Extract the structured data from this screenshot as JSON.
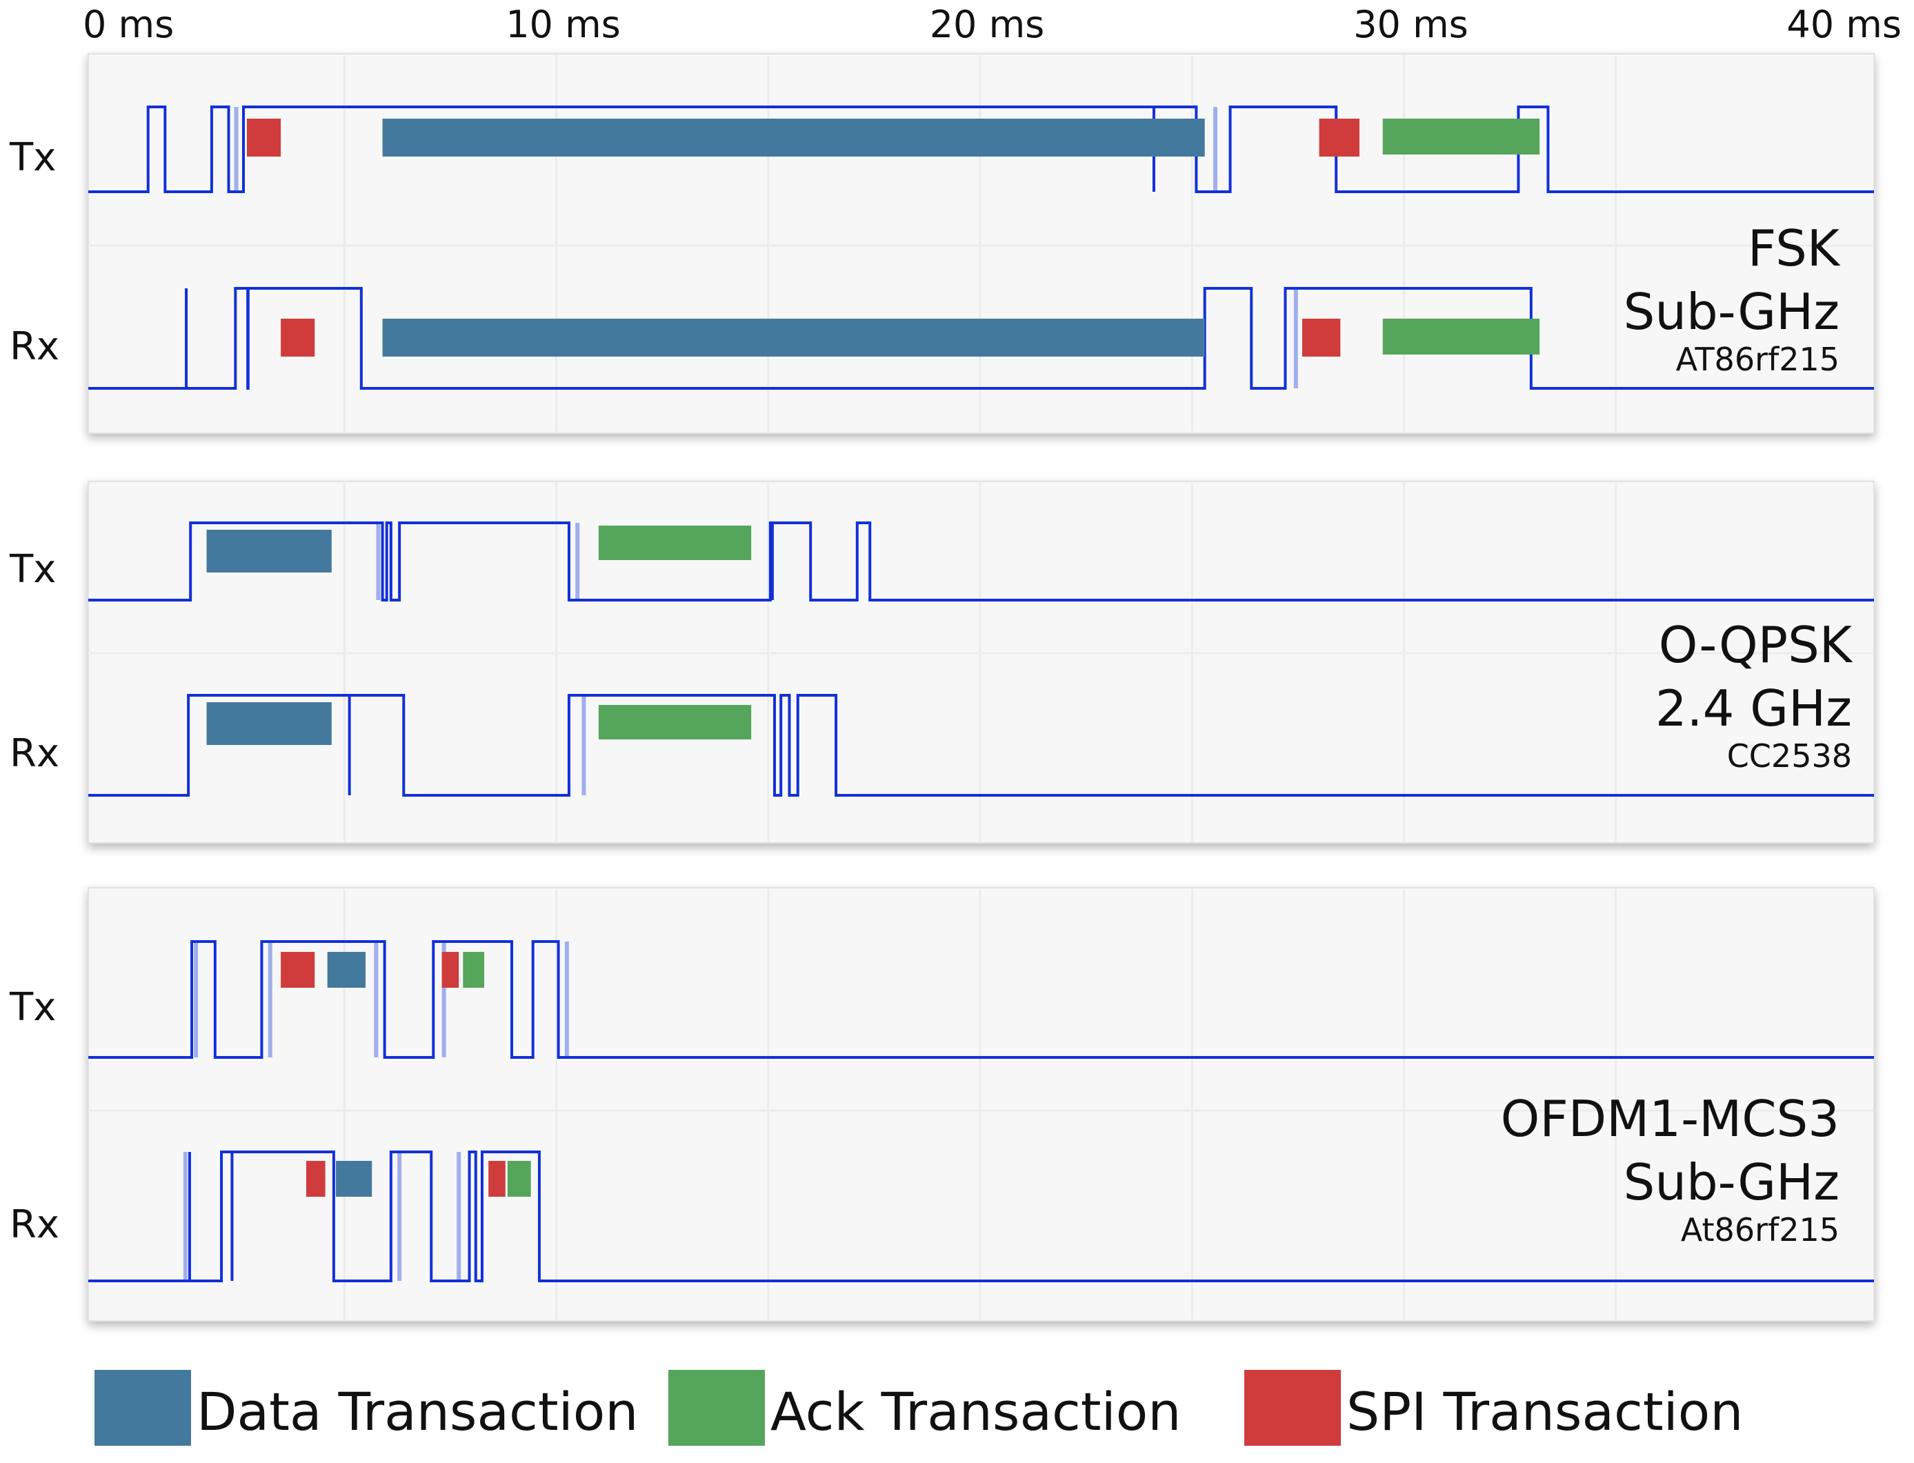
{
  "chart_data": {
    "type": "timing",
    "x_unit": "ms",
    "x_range": [
      0,
      40
    ],
    "x_ticks": [
      {
        "value": 0,
        "label": "0 ms"
      },
      {
        "value": 10,
        "label": "10 ms"
      },
      {
        "value": 20,
        "label": "20 ms"
      },
      {
        "value": 30,
        "label": "30 ms"
      },
      {
        "value": 40,
        "label": "40 ms"
      }
    ],
    "colors": {
      "data": "#44799e",
      "ack": "#55a55a",
      "spi": "#d03c3c",
      "signal": "#1230d8",
      "panel": "#f7f7f7"
    },
    "legend": {
      "placement": "bottom",
      "items": [
        {
          "key": "data",
          "label": "Data Transaction"
        },
        {
          "key": "ack",
          "label": "Ack Transaction"
        },
        {
          "key": "spi",
          "label": "SPI Transaction"
        }
      ]
    },
    "panels": [
      {
        "label_line1": "FSK",
        "label_line2": "Sub-GHz",
        "chip": "AT86rf215",
        "rows": [
          {
            "name": "Tx",
            "pulses": [
              [
                0.37,
                0.77
              ],
              [
                1.87,
                2.27
              ],
              [
                2.62,
                24.1
              ],
              [
                24.1,
                25.1
              ],
              [
                25.9,
                28.4
              ],
              [
                32.7,
                33.4
              ]
            ],
            "faint_edges": [
              2.45,
              25.55
            ],
            "blocks": [
              {
                "kind": "spi",
                "start": 2.7,
                "end": 3.5
              },
              {
                "kind": "data",
                "start": 5.9,
                "end": 25.3
              },
              {
                "kind": "spi",
                "start": 28.0,
                "end": 28.95
              },
              {
                "kind": "ack",
                "start": 29.5,
                "end": 33.2
              }
            ]
          },
          {
            "name": "Rx",
            "pulses": [
              [
                1.27,
                1.27
              ],
              [
                2.43,
                2.73
              ],
              [
                2.72,
                5.4
              ],
              [
                25.3,
                26.4
              ],
              [
                27.2,
                33.0
              ]
            ],
            "faint_edges": [
              27.45
            ],
            "blocks": [
              {
                "kind": "spi",
                "start": 3.5,
                "end": 4.3
              },
              {
                "kind": "data",
                "start": 5.9,
                "end": 25.3
              },
              {
                "kind": "spi",
                "start": 27.6,
                "end": 28.5
              },
              {
                "kind": "ack",
                "start": 29.5,
                "end": 33.2
              }
            ]
          }
        ]
      },
      {
        "label_line1": "O-QPSK",
        "label_line2": "2.4 GHz",
        "chip": "CC2538",
        "rows": [
          {
            "name": "Tx",
            "pulses": [
              [
                1.37,
                5.9
              ],
              [
                6.0,
                6.1
              ],
              [
                6.3,
                10.3
              ],
              [
                15.05,
                15.1
              ],
              [
                15.1,
                16.0
              ],
              [
                17.1,
                17.4
              ]
            ],
            "faint_edges": [
              5.8,
              10.5
            ],
            "blocks": [
              {
                "kind": "data",
                "start": 1.75,
                "end": 4.7
              },
              {
                "kind": "ack",
                "start": 11.0,
                "end": 14.6
              }
            ]
          },
          {
            "name": "Rx",
            "pulses": [
              [
                1.32,
                5.12
              ],
              [
                5.12,
                6.4
              ],
              [
                10.3,
                15.15
              ],
              [
                15.3,
                15.5
              ],
              [
                15.7,
                16.6
              ]
            ],
            "faint_edges": [
              10.65
            ],
            "blocks": [
              {
                "kind": "data",
                "start": 1.75,
                "end": 4.7
              },
              {
                "kind": "ack",
                "start": 11.0,
                "end": 14.6
              }
            ]
          }
        ]
      },
      {
        "label_line1": "OFDM1-MCS3",
        "label_line2": "Sub-GHz",
        "chip": "At86rf215",
        "rows": [
          {
            "name": "Tx",
            "pulses": [
              [
                1.4,
                1.95
              ],
              [
                3.05,
                5.95
              ],
              [
                7.1,
                8.95
              ],
              [
                9.45,
                10.05
              ]
            ],
            "faint_edges": [
              3.25,
              5.75,
              7.35,
              10.25,
              1.5
            ],
            "blocks": [
              {
                "kind": "spi",
                "start": 3.5,
                "end": 4.3
              },
              {
                "kind": "data",
                "start": 4.6,
                "end": 5.5
              },
              {
                "kind": "spi",
                "start": 7.3,
                "end": 7.7
              },
              {
                "kind": "ack",
                "start": 7.8,
                "end": 8.3
              }
            ]
          },
          {
            "name": "Rx",
            "pulses": [
              [
                1.35,
                1.35
              ],
              [
                2.1,
                2.35
              ],
              [
                2.35,
                4.75
              ],
              [
                6.1,
                7.05
              ],
              [
                7.95,
                8.1
              ],
              [
                8.25,
                9.6
              ]
            ],
            "faint_edges": [
              1.25,
              6.3,
              7.7
            ],
            "blocks": [
              {
                "kind": "spi",
                "start": 4.1,
                "end": 4.55
              },
              {
                "kind": "data",
                "start": 4.8,
                "end": 5.65
              },
              {
                "kind": "spi",
                "start": 8.4,
                "end": 8.8
              },
              {
                "kind": "ack",
                "start": 8.85,
                "end": 9.4
              }
            ]
          }
        ]
      }
    ]
  }
}
